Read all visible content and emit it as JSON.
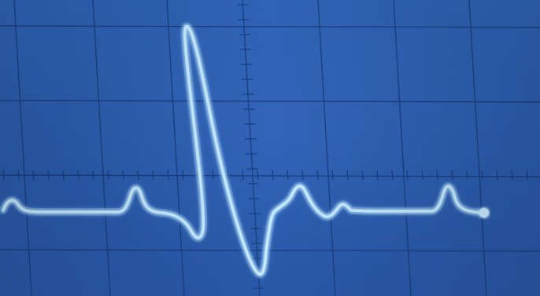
{
  "scene": {
    "subject": "oscilloscope-ecg-waveform",
    "colors": {
      "screen": "#2d5fb2",
      "grid": "#163a78",
      "trace": "#bfe6ff",
      "glow": "#7fc4ff"
    }
  }
}
